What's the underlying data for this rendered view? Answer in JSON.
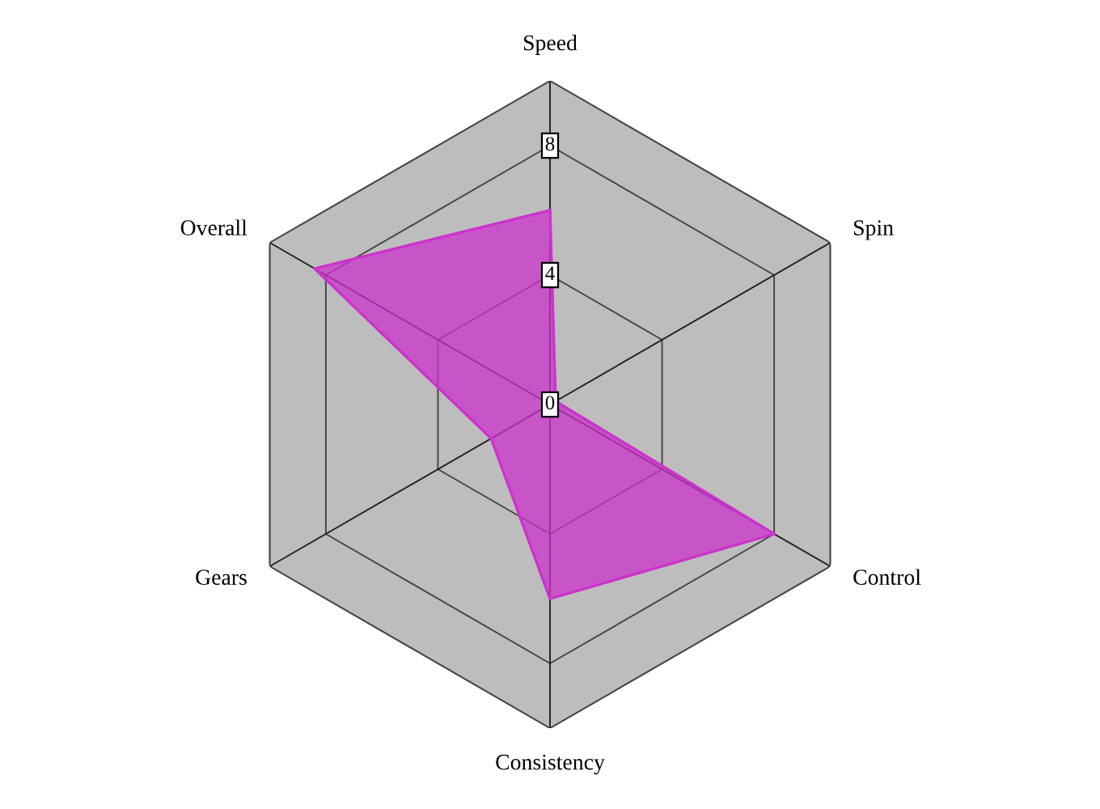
{
  "chart_data": {
    "type": "radar",
    "categories": [
      "Speed",
      "Spin",
      "Control",
      "Consistency",
      "Gears",
      "Overall"
    ],
    "series": [
      {
        "color": "#cc33cc",
        "values": [
          6,
          0.2,
          8,
          6,
          2.1,
          8.4
        ]
      }
    ],
    "ylim": [
      0,
      10
    ],
    "yticks": [
      0,
      4,
      8
    ],
    "grid": true
  }
}
